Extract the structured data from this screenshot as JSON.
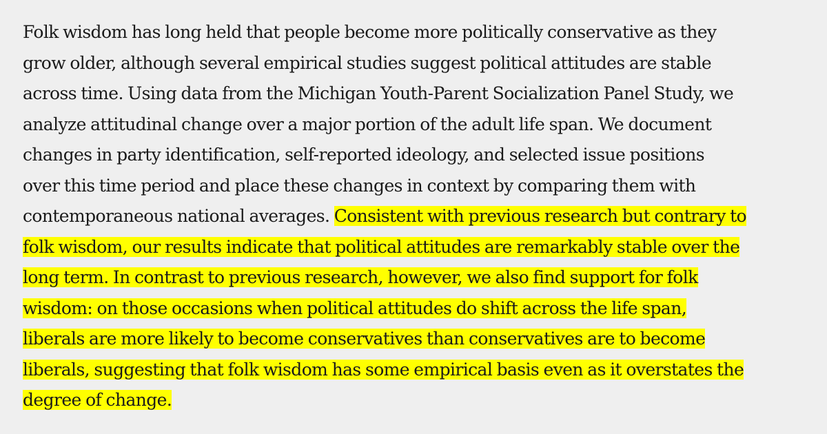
{
  "abstract": {
    "lines": [
      {
        "plain": "Folk wisdom has long held that people become more politically conservative as they",
        "highlighted": ""
      },
      {
        "plain": "grow older, although several empirical studies suggest political attitudes are stable",
        "highlighted": ""
      },
      {
        "plain": "across time. Using data from the Michigan Youth-Parent Socialization Panel Study, we",
        "highlighted": ""
      },
      {
        "plain": "analyze attitudinal change over a major portion of the adult life span. We document",
        "highlighted": ""
      },
      {
        "plain": "changes in party identification, self-reported ideology, and selected issue positions",
        "highlighted": ""
      },
      {
        "plain": "over this time period and place these changes in context by comparing them with",
        "highlighted": ""
      },
      {
        "plain": "contemporaneous national averages. ",
        "highlighted": "Consistent with previous research but contrary to"
      },
      {
        "plain": "",
        "highlighted": "folk wisdom, our results indicate that political attitudes are remarkably stable over the"
      },
      {
        "plain": "",
        "highlighted": "long term. In contrast to previous research, however, we also find support for folk"
      },
      {
        "plain": "",
        "highlighted": "wisdom: on those occasions when political attitudes do shift across the life span,"
      },
      {
        "plain": "",
        "highlighted": "liberals are more likely to become conservatives than conservatives are to become"
      },
      {
        "plain": "",
        "highlighted": "liberals, suggesting that folk wisdom has some empirical basis even as it overstates the"
      },
      {
        "plain": "",
        "highlighted": "degree of change."
      }
    ],
    "highlight_color": "#ffff00",
    "text_color": "#1a1a1a",
    "background_color": "#efefef"
  }
}
